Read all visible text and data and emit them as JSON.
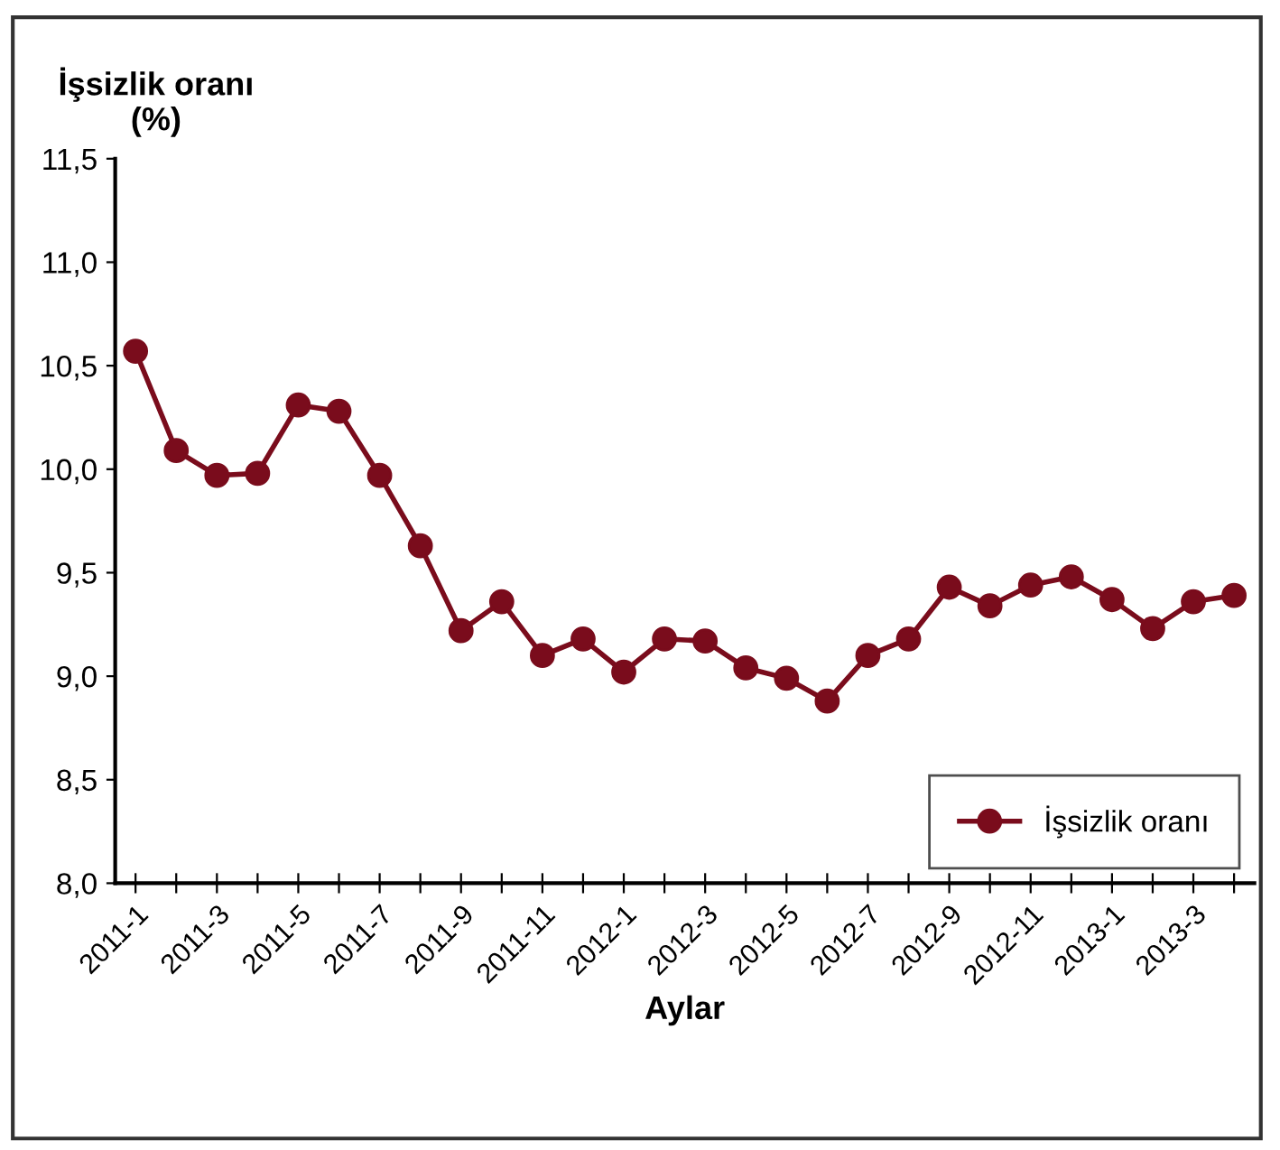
{
  "chart_data": {
    "type": "line",
    "ylabel": "İşsizlik oranı\n(%)",
    "xlabel": "Aylar",
    "categories": [
      "2011-1",
      null,
      "2011-3",
      null,
      "2011-5",
      null,
      "2011-7",
      null,
      "2011-9",
      null,
      "2011-11",
      null,
      "2012-1",
      null,
      "2012-3",
      null,
      "2012-5",
      null,
      "2012-7",
      null,
      "2012-9",
      null,
      "2012-11",
      null,
      "2013-1",
      null,
      "2013-3",
      null
    ],
    "series": [
      {
        "name": "İşsizlik oranı",
        "color": "#7a0c1c",
        "values": [
          10.57,
          10.09,
          9.97,
          9.98,
          10.31,
          10.28,
          9.97,
          9.63,
          9.22,
          9.36,
          9.1,
          9.18,
          9.02,
          9.18,
          9.17,
          9.04,
          8.99,
          8.88,
          9.1,
          9.18,
          9.43,
          9.34,
          9.44,
          9.48,
          9.37,
          9.23,
          9.36,
          9.39
        ]
      }
    ],
    "ylim": [
      8.0,
      11.5
    ],
    "yticks": [
      {
        "value": 8.0,
        "label": "8,0"
      },
      {
        "value": 8.5,
        "label": "8,5"
      },
      {
        "value": 9.0,
        "label": "9,0"
      },
      {
        "value": 9.5,
        "label": "9,5"
      },
      {
        "value": 10.0,
        "label": "10,0"
      },
      {
        "value": 10.5,
        "label": "10,5"
      },
      {
        "value": 11.0,
        "label": "11,0"
      },
      {
        "value": 11.5,
        "label": "11,5"
      }
    ],
    "grid": false,
    "legend": "bottom right",
    "marker": "circle",
    "line_style": "solid"
  }
}
